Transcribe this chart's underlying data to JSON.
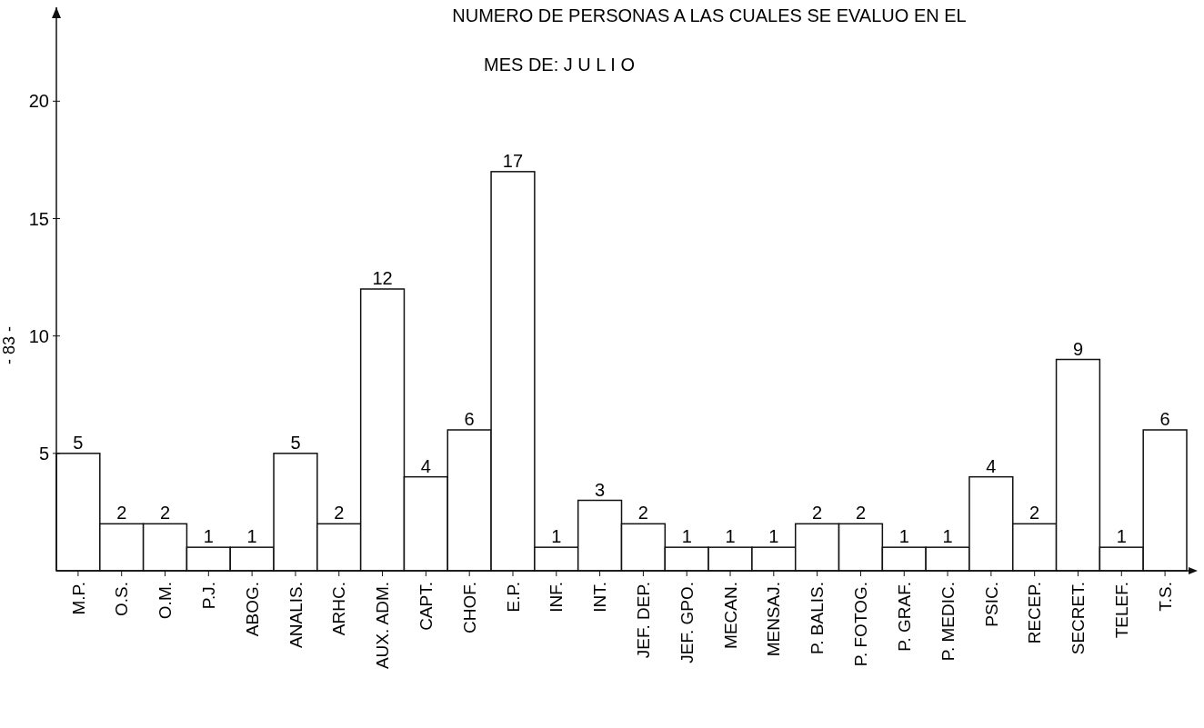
{
  "chart_data": {
    "type": "bar",
    "title": "NUMERO DE PERSONAS A LAS CUALES SE EVALUO EN EL",
    "subtitle": "MES DE: J U L I O",
    "categories": [
      "M.P.",
      "O.S.",
      "O.M.",
      "P.J.",
      "ABOG.",
      "ANALIS.",
      "ARHC.",
      "AUX. ADM.",
      "CAPT.",
      "CHOF.",
      "E.P.",
      "INF.",
      "INT.",
      "JEF. DEP.",
      "JEF. GPO.",
      "MECAN.",
      "MENSAJ.",
      "P. BALIS.",
      "P. FOTOG.",
      "P. GRAF.",
      "P. MEDIC.",
      "PSIC.",
      "RECEP.",
      "SECRET.",
      "TELEF.",
      "T.S."
    ],
    "values": [
      5,
      2,
      2,
      1,
      1,
      5,
      2,
      12,
      4,
      6,
      17,
      1,
      3,
      2,
      1,
      1,
      1,
      2,
      2,
      1,
      1,
      4,
      2,
      9,
      1,
      6
    ],
    "color": "#ffffff",
    "ylim": [
      0,
      24
    ],
    "yticks": [
      5,
      10,
      15,
      20
    ],
    "grid": false,
    "data_labels": true,
    "annotations": [
      "- 83 -"
    ]
  }
}
